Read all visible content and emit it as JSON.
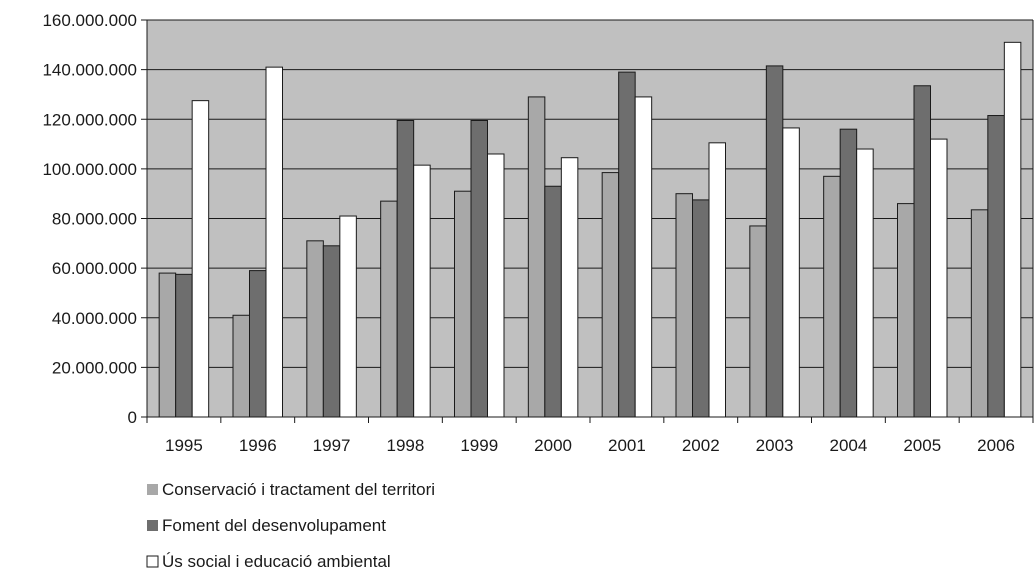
{
  "chart_data": {
    "type": "bar",
    "title": "",
    "xlabel": "",
    "ylabel": "",
    "categories": [
      "1995",
      "1996",
      "1997",
      "1998",
      "1999",
      "2000",
      "2001",
      "2002",
      "2003",
      "2004",
      "2005",
      "2006"
    ],
    "ylim": [
      0,
      160000000
    ],
    "yticks": [
      0,
      20000000,
      40000000,
      60000000,
      80000000,
      100000000,
      120000000,
      140000000,
      160000000
    ],
    "ytick_labels": [
      "0",
      "20.000.000",
      "40.000.000",
      "60.000.000",
      "80.000.000",
      "100.000.000",
      "120.000.000",
      "140.000.000",
      "160.000.000"
    ],
    "grid": true,
    "legend_position": "bottom-left",
    "plot_background": "#c0c0c0",
    "series": [
      {
        "name": "Conservació i tractament del territori",
        "color": "#a8a8a8",
        "values": [
          58000000,
          41000000,
          71000000,
          87000000,
          91000000,
          129000000,
          98500000,
          90000000,
          77000000,
          97000000,
          86000000,
          83500000
        ]
      },
      {
        "name": "Foment del desenvolupament",
        "color": "#6e6e6e",
        "values": [
          57500000,
          59000000,
          69000000,
          119500000,
          119500000,
          93000000,
          139000000,
          87500000,
          141500000,
          116000000,
          133500000,
          121500000
        ]
      },
      {
        "name": "Ús social i educació ambiental",
        "color": "#ffffff",
        "values": [
          127500000,
          141000000,
          81000000,
          101500000,
          106000000,
          104500000,
          129000000,
          110500000,
          116500000,
          108000000,
          112000000,
          151000000
        ]
      }
    ]
  }
}
